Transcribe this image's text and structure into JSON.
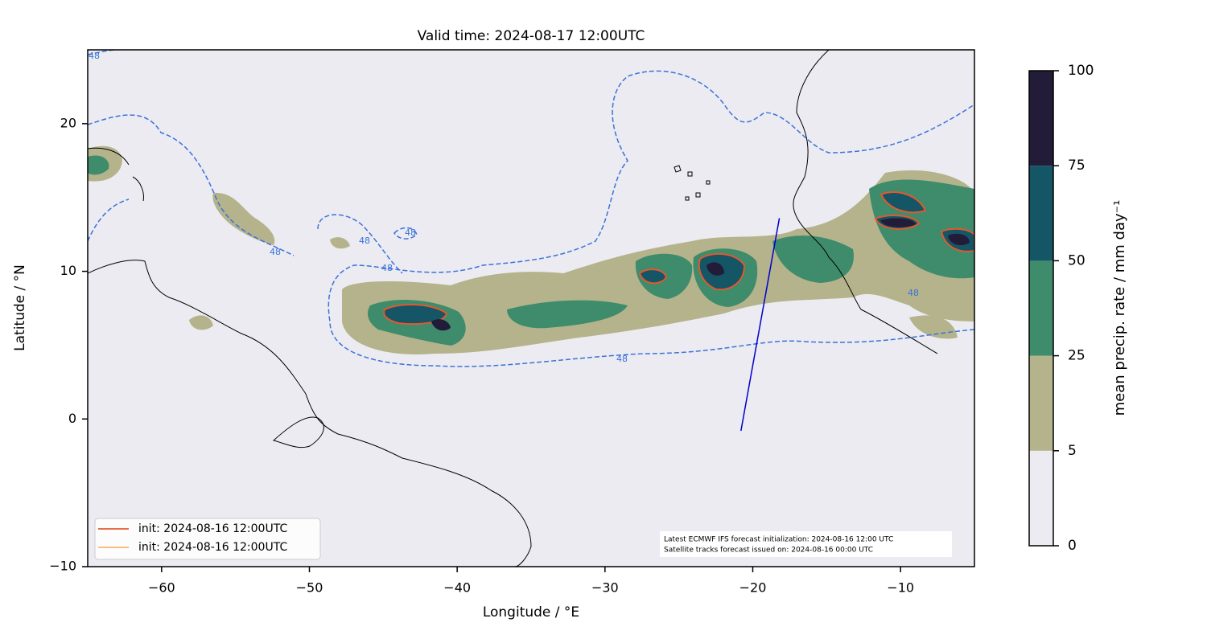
{
  "chart_data": {
    "type": "map",
    "title": "Valid time: 2024-08-17 12:00UTC",
    "xlabel": "Longitude / °E",
    "ylabel": "Latitude / °N",
    "xlim": [
      -65,
      -5
    ],
    "ylim": [
      -10,
      25
    ],
    "xticks": [
      {
        "value": -60,
        "label": "−60"
      },
      {
        "value": -50,
        "label": "−50"
      },
      {
        "value": -40,
        "label": "−40"
      },
      {
        "value": -30,
        "label": "−30"
      },
      {
        "value": -20,
        "label": "−20"
      },
      {
        "value": -10,
        "label": "−10"
      }
    ],
    "yticks": [
      {
        "value": -10,
        "label": "−10"
      },
      0,
      10,
      20
    ],
    "contour_label": "48",
    "contour_color": "#3a73d9",
    "track": {
      "color": "#0000cc",
      "lon": [
        -20.8,
        -18.2
      ],
      "lat": [
        -0.8,
        13.6
      ]
    },
    "legend": {
      "loc": "lower left",
      "entries": [
        {
          "name": "init: 2024-08-16 12:00UTC",
          "color": "#e4572e"
        },
        {
          "name": "init: 2024-08-16 12:00UTC",
          "color": "#f59a3c"
        }
      ]
    },
    "note": [
      "Latest ECMWF IFS forecast initialization: 2024-08-16 12:00 UTC",
      "Satellite tracks forecast issued on: 2024-08-16 00:00 UTC"
    ],
    "colorbar": {
      "label": "mean precip. rate / mm day⁻¹",
      "ticks": [
        0,
        5,
        25,
        50,
        75,
        100
      ],
      "colors": [
        "#ecebf1",
        "#b5b38c",
        "#3e8c6c",
        "#145566",
        "#221c38"
      ]
    }
  }
}
